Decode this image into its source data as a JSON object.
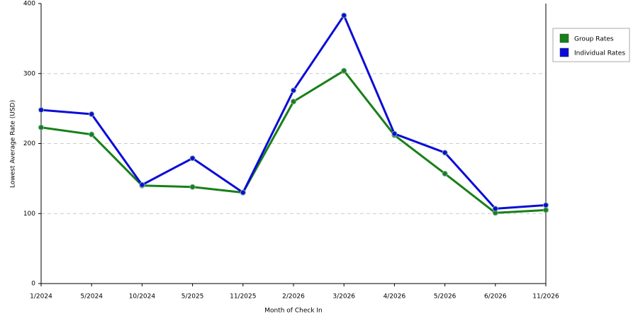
{
  "chart_data": {
    "type": "line",
    "x_label": "Month of Check In",
    "y_label": "Lowest Average Rate (USD)",
    "categories": [
      "1/2024",
      "5/2024",
      "10/2024",
      "5/2025",
      "11/2025",
      "2/2026",
      "3/2026",
      "4/2026",
      "5/2026",
      "6/2026",
      "11/2026"
    ],
    "series": [
      {
        "name": "Group Rates",
        "color": "#188018",
        "values": [
          223,
          213,
          140,
          138,
          130,
          260,
          304,
          212,
          157,
          101,
          105
        ]
      },
      {
        "name": "Individual Rates",
        "color": "#0c0cd8",
        "values": [
          248,
          242,
          141,
          179,
          130,
          276,
          383,
          214,
          187,
          107,
          112
        ]
      }
    ],
    "ylim": [
      0,
      400
    ],
    "yticks": [
      0,
      100,
      200,
      300,
      400
    ],
    "grid": true
  }
}
